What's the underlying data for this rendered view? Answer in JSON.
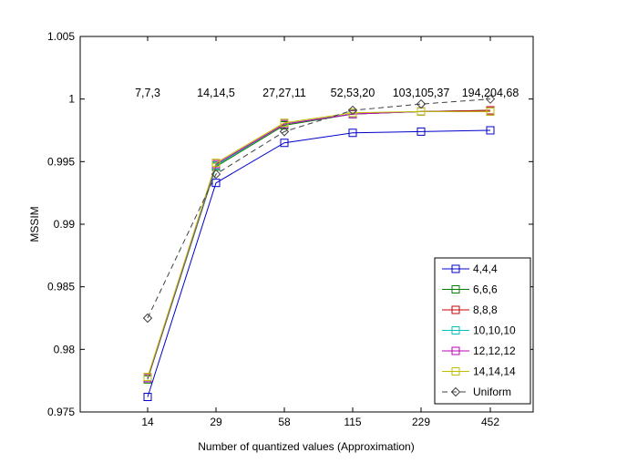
{
  "chart_data": {
    "type": "line",
    "title": "",
    "xlabel": "Number of quantized values (Approximation)",
    "ylabel": "MSSIM",
    "x_scale": "categorical",
    "categories": [
      "14",
      "29",
      "58",
      "115",
      "229",
      "452"
    ],
    "ylim": [
      0.975,
      1.005
    ],
    "yticks": [
      "0.975",
      "0.98",
      "0.985",
      "0.99",
      "0.995",
      "1",
      "1.005"
    ],
    "ytick_values": [
      0.975,
      0.98,
      0.985,
      0.99,
      0.995,
      1.0,
      1.005
    ],
    "grid": false,
    "legend_position": "bottom-right",
    "annotations": [
      "7,7,3",
      "14,14,5",
      "27,27,11",
      "52,53,20",
      "103,105,37",
      "194,204,68"
    ],
    "annotation_y": 1.0005,
    "series": [
      {
        "name": "4,4,4",
        "color": "#0000cc",
        "marker": "square",
        "dash": false,
        "values": [
          0.9762,
          0.9933,
          0.9965,
          0.9973,
          0.9974,
          0.9975
        ]
      },
      {
        "name": "6,6,6",
        "color": "#007f00",
        "marker": "square",
        "dash": false,
        "values": [
          0.9776,
          0.9946,
          0.9979,
          0.9988,
          0.999,
          0.9991
        ]
      },
      {
        "name": "8,8,8",
        "color": "#cc0000",
        "marker": "square",
        "dash": false,
        "values": [
          0.9777,
          0.9947,
          0.998,
          0.9988,
          0.999,
          0.9991
        ]
      },
      {
        "name": "10,10,10",
        "color": "#00bfbf",
        "marker": "square",
        "dash": false,
        "values": [
          0.9777,
          0.9947,
          0.998,
          0.9988,
          0.999,
          0.999
        ]
      },
      {
        "name": "12,12,12",
        "color": "#bf00bf",
        "marker": "square",
        "dash": false,
        "values": [
          0.9777,
          0.9948,
          0.998,
          0.9988,
          0.999,
          0.999
        ]
      },
      {
        "name": "14,14,14",
        "color": "#bfbf00",
        "marker": "square",
        "dash": false,
        "values": [
          0.9778,
          0.9949,
          0.9981,
          0.9989,
          0.999,
          0.999
        ]
      },
      {
        "name": "Uniform",
        "color": "#404040",
        "marker": "diamond",
        "dash": true,
        "values": [
          0.9825,
          0.994,
          0.9974,
          0.9991,
          0.9996,
          1.0
        ]
      }
    ]
  }
}
